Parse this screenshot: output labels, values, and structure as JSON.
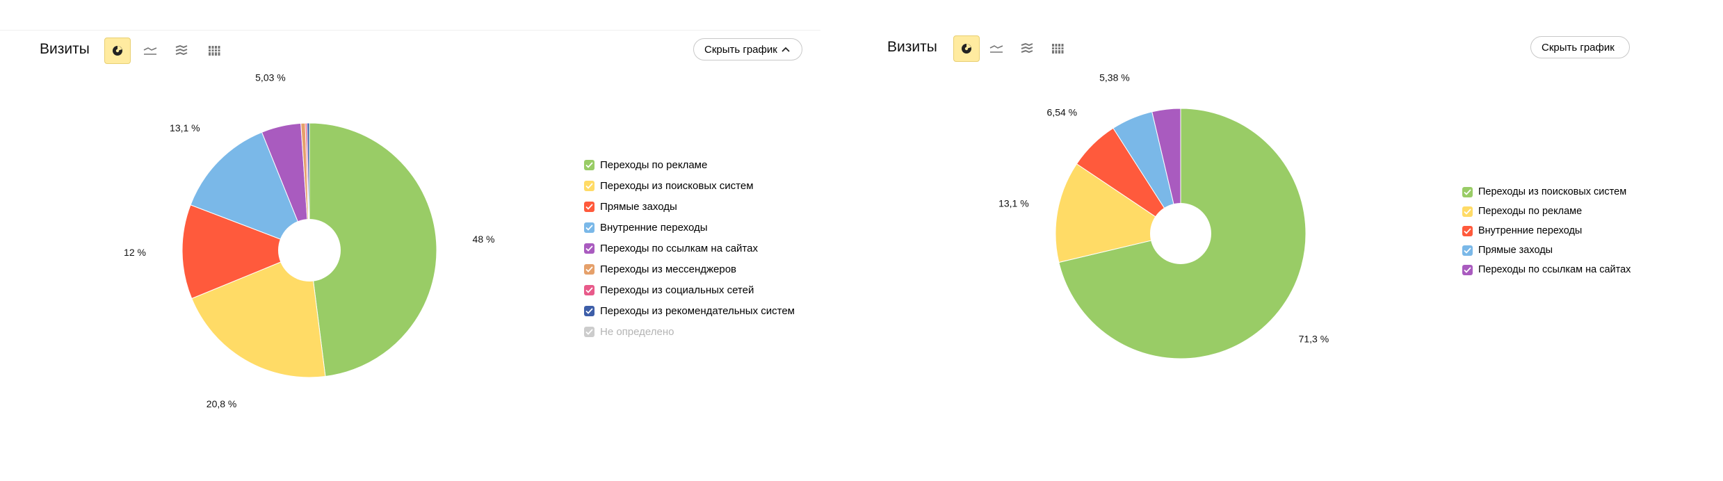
{
  "colors": {
    "green": "#99cc66",
    "yellow": "#ffdb66",
    "red": "#ff5a3c",
    "blue": "#7ab8e8",
    "purple": "#a95bbf",
    "orange": "#e5a06a",
    "pink": "#e85a8a",
    "darkblue": "#3d5ea8",
    "gray": "#cccccc",
    "active_bg": "#ffeba0"
  },
  "panels": [
    {
      "title": "Визиты",
      "hide_button": "Скрыть график",
      "view_icons": [
        "pie-chart-icon",
        "line-chart-icon",
        "area-chart-icon",
        "bar-chart-icon"
      ],
      "active_view": "pie-chart-icon",
      "legend": [
        {
          "label": "Переходы по рекламе",
          "color": "#99cc66",
          "enabled": true
        },
        {
          "label": "Переходы из поисковых систем",
          "color": "#ffdb66",
          "enabled": true
        },
        {
          "label": "Прямые заходы",
          "color": "#ff5a3c",
          "enabled": true
        },
        {
          "label": "Внутренние переходы",
          "color": "#7ab8e8",
          "enabled": true
        },
        {
          "label": "Переходы по ссылкам на сайтах",
          "color": "#a95bbf",
          "enabled": true
        },
        {
          "label": "Переходы из мессенджеров",
          "color": "#e5a06a",
          "enabled": true
        },
        {
          "label": "Переходы из социальных сетей",
          "color": "#e85a8a",
          "enabled": true
        },
        {
          "label": "Переходы из рекомендательных систем",
          "color": "#3d5ea8",
          "enabled": true
        },
        {
          "label": "Не определено",
          "color": "#cccccc",
          "enabled": false
        }
      ]
    },
    {
      "title": "Визиты",
      "hide_button": "Скрыть график",
      "view_icons": [
        "pie-chart-icon",
        "line-chart-icon",
        "area-chart-icon",
        "bar-chart-icon"
      ],
      "active_view": "pie-chart-icon",
      "legend": [
        {
          "label": "Переходы из поисковых систем",
          "color": "#99cc66",
          "enabled": true
        },
        {
          "label": "Переходы по рекламе",
          "color": "#ffdb66",
          "enabled": true
        },
        {
          "label": "Внутренние переходы",
          "color": "#ff5a3c",
          "enabled": true
        },
        {
          "label": "Прямые заходы",
          "color": "#7ab8e8",
          "enabled": true
        },
        {
          "label": "Переходы по ссылкам на сайтах",
          "color": "#a95bbf",
          "enabled": true
        }
      ]
    }
  ],
  "chart_data": [
    {
      "type": "pie",
      "variant": "donut",
      "title": "Визиты",
      "categories": [
        "Переходы по рекламе",
        "Переходы из поисковых систем",
        "Прямые заходы",
        "Внутренние переходы",
        "Переходы по ссылкам на сайтах",
        "Переходы из мессенджеров",
        "Переходы из социальных сетей",
        "Переходы из рекомендательных систем"
      ],
      "values": [
        48,
        20.8,
        12,
        13.1,
        5.03,
        0.55,
        0.22,
        0.3
      ],
      "data_labels": [
        "48 %",
        "20,8 %",
        "12 %",
        "13,1 %",
        "5,03 %",
        "",
        "",
        ""
      ],
      "colors": [
        "#99cc66",
        "#ffdb66",
        "#ff5a3c",
        "#7ab8e8",
        "#a95bbf",
        "#e5a06a",
        "#e85a8a",
        "#3d5ea8"
      ],
      "legend_position": "right"
    },
    {
      "type": "pie",
      "variant": "donut",
      "title": "Визиты",
      "categories": [
        "Переходы из поисковых систем",
        "Переходы по рекламе",
        "Внутренние переходы",
        "Прямые заходы",
        "Переходы по ссылкам на сайтах"
      ],
      "values": [
        71.3,
        13.1,
        6.54,
        5.38,
        3.68
      ],
      "data_labels": [
        "71,3 %",
        "13,1 %",
        "6,54 %",
        "5,38 %",
        ""
      ],
      "colors": [
        "#99cc66",
        "#ffdb66",
        "#ff5a3c",
        "#7ab8e8",
        "#a95bbf"
      ],
      "legend_position": "right"
    }
  ]
}
